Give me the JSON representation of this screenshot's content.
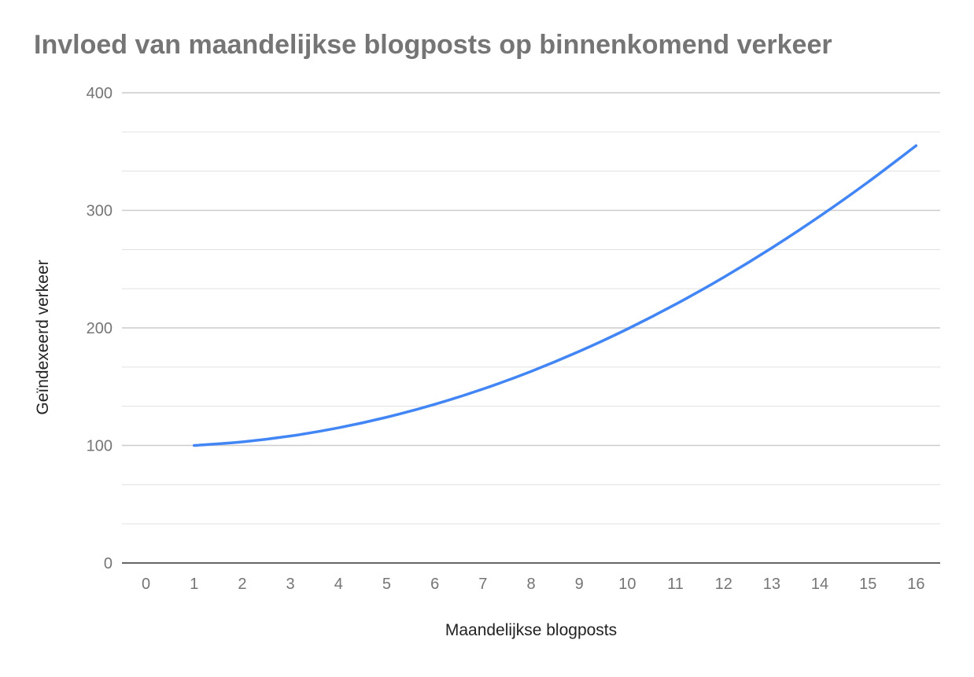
{
  "chart_data": {
    "type": "line",
    "title": "Invloed van maandelijkse blogposts op binnenkomend verkeer",
    "xlabel": "Maandelijkse blogposts",
    "ylabel": "Geïndexeerd verkeer",
    "x_ticks": [
      "0",
      "1",
      "2",
      "3",
      "4",
      "5",
      "6",
      "7",
      "8",
      "9",
      "10",
      "11",
      "12",
      "13",
      "14",
      "15",
      "16"
    ],
    "y_ticks": [
      "0",
      "100",
      "200",
      "300",
      "400"
    ],
    "xlim": [
      -0.5,
      16.5
    ],
    "ylim": [
      0,
      400
    ],
    "grid": true,
    "series": [
      {
        "color": "#4285F4",
        "x": [
          1,
          2,
          3,
          4,
          5,
          6,
          7,
          8,
          9,
          10,
          11,
          12,
          13,
          14,
          15,
          16
        ],
        "y": [
          100,
          103,
          108,
          115,
          124,
          135,
          148,
          163,
          180,
          199,
          220,
          243,
          268,
          295,
          324,
          355
        ]
      }
    ]
  },
  "colors": {
    "line": "#4285F4",
    "title": "#757575",
    "tick_label": "#757575",
    "axis_title": "#222222",
    "major_grid": "#cccccc",
    "minor_grid": "#e0e0e0",
    "baseline": "#333333"
  }
}
